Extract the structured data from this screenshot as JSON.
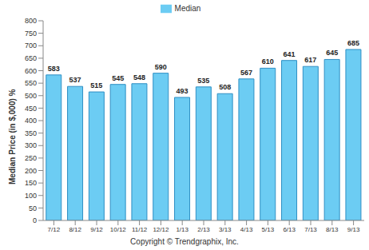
{
  "chart_data": {
    "type": "bar",
    "categories": [
      "7/12",
      "8/12",
      "9/12",
      "10/12",
      "11/12",
      "12/12",
      "1/13",
      "2/13",
      "3/13",
      "4/13",
      "5/13",
      "6/13",
      "7/13",
      "8/13",
      "9/13"
    ],
    "series": [
      {
        "name": "Median",
        "color": "#6cccf3",
        "values": [
          583,
          537,
          515,
          545,
          548,
          590,
          493,
          535,
          508,
          567,
          610,
          641,
          617,
          645,
          685
        ]
      }
    ],
    "y_label": "Median Price (in $,000) %",
    "caption": "Copyright © Trendgraphix, Inc.",
    "ylim": [
      0,
      800
    ],
    "yticks": [
      0,
      50,
      100,
      150,
      200,
      250,
      300,
      350,
      400,
      450,
      500,
      550,
      600,
      650,
      700,
      750,
      800
    ],
    "grid": false,
    "legend": "top",
    "data_labels": true
  }
}
